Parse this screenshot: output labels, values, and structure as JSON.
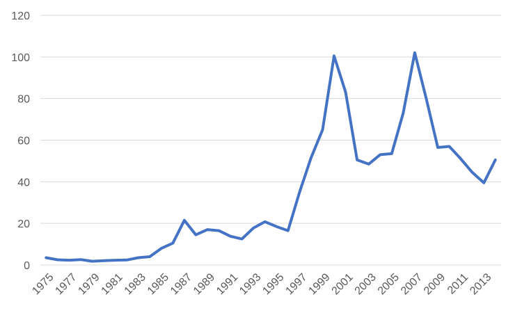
{
  "chart_data": {
    "type": "line",
    "title": "",
    "xlabel": "",
    "ylabel": "",
    "x": [
      1975,
      1976,
      1977,
      1978,
      1979,
      1980,
      1981,
      1982,
      1983,
      1984,
      1985,
      1986,
      1987,
      1988,
      1989,
      1990,
      1991,
      1992,
      1993,
      1994,
      1995,
      1996,
      1997,
      1998,
      1999,
      2000,
      2001,
      2002,
      2003,
      2004,
      2005,
      2006,
      2007,
      2008,
      2009,
      2010,
      2011,
      2012,
      2013,
      2014
    ],
    "x_tick_labels": [
      "1975",
      "1977",
      "1979",
      "1981",
      "1983",
      "1985",
      "1987",
      "1989",
      "1991",
      "1993",
      "1995",
      "1997",
      "1999",
      "2001",
      "2003",
      "2005",
      "2007",
      "2009",
      "2011",
      "2013"
    ],
    "ylim": [
      0,
      120
    ],
    "y_ticks": [
      0,
      20,
      40,
      60,
      80,
      100,
      120
    ],
    "grid": true,
    "legend": "none",
    "series": [
      {
        "color": "#4472C4",
        "values": [
          3.5,
          2.5,
          2.3,
          2.6,
          1.8,
          2.1,
          2.3,
          2.4,
          3.5,
          4.0,
          8.0,
          10.5,
          21.5,
          14.5,
          17.0,
          16.5,
          13.8,
          12.5,
          17.8,
          20.8,
          18.5,
          16.5,
          35.0,
          51.5,
          65.0,
          100.5,
          83.0,
          50.5,
          48.5,
          53.0,
          53.5,
          73.0,
          102.0,
          80.0,
          56.5,
          57.0,
          51.0,
          44.5,
          39.5,
          50.5
        ]
      }
    ]
  }
}
